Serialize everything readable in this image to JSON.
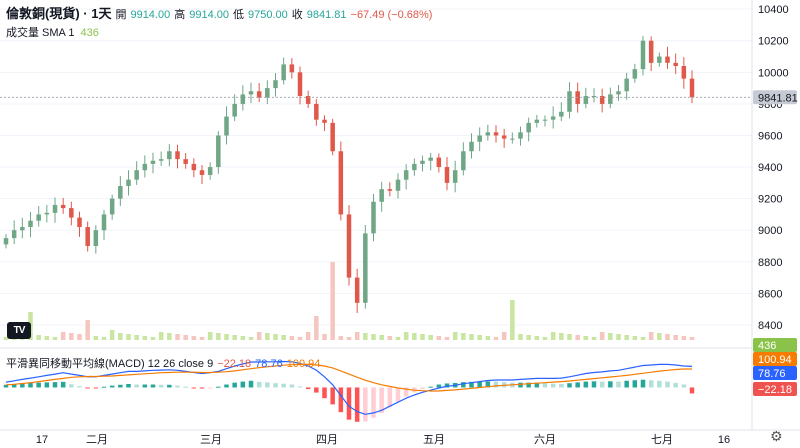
{
  "header": {
    "title": "倫敦銅(現貨) · 1天",
    "open_label": "開",
    "open": "9914.00",
    "high_label": "高",
    "high": "9914.00",
    "low_label": "低",
    "low": "9750.00",
    "close_label": "收",
    "close": "9841.81",
    "change": "−67.49 (−0.68%)"
  },
  "volume": {
    "label": "成交量 SMA 1",
    "value": "436"
  },
  "macd": {
    "label": "平滑異同移動平均線(MACD) 12 26 close 9",
    "hist": "−22.18",
    "macd": "78.76",
    "signal": "100.94"
  },
  "colors": {
    "up": "#26a69a",
    "up_candle": "#6fa686",
    "down": "#e0584a",
    "macd_line": "#2962ff",
    "signal_line": "#f57c00",
    "vol_bar": "#c8e6a0"
  },
  "logo": "TV",
  "settings_icon": "gear-icon",
  "chart_data": {
    "type": "candlestick",
    "y_axis_ticks": [
      8400,
      8600,
      8800,
      9000,
      9200,
      9400,
      9600,
      9800,
      10000,
      10200,
      10400
    ],
    "ylim": [
      8330,
      10420
    ],
    "x_axis_labels": [
      "17",
      "二月",
      "三月",
      "四月",
      "五月",
      "六月",
      "七月",
      "16"
    ],
    "last_price": "9841.81",
    "price_series": [
      8950,
      9000,
      9020,
      9060,
      9100,
      9110,
      9160,
      9140,
      9080,
      9020,
      8900,
      9000,
      9100,
      9200,
      9280,
      9320,
      9380,
      9420,
      9440,
      9450,
      9500,
      9450,
      9420,
      9380,
      9350,
      9400,
      9600,
      9720,
      9800,
      9860,
      9880,
      9840,
      9900,
      9950,
      10050,
      10000,
      9850,
      9800,
      9700,
      9680,
      9500,
      9100,
      8700,
      8540,
      8980,
      9180,
      9260,
      9250,
      9320,
      9380,
      9420,
      9440,
      9460,
      9400,
      9300,
      9380,
      9500,
      9560,
      9600,
      9620,
      9600,
      9580,
      9580,
      9620,
      9680,
      9700,
      9700,
      9720,
      9750,
      9880,
      9800,
      9850,
      9850,
      9800,
      9860,
      9880,
      9960,
      10020,
      10200,
      10060,
      10100,
      10060,
      10040,
      9960,
      9841.81
    ],
    "macd_series": {
      "macd": [
        20,
        25,
        30,
        35,
        40,
        45,
        50,
        55,
        50,
        45,
        40,
        40,
        45,
        50,
        55,
        60,
        60,
        62,
        64,
        65,
        66,
        64,
        60,
        56,
        52,
        55,
        60,
        70,
        80,
        88,
        95,
        95,
        96,
        96,
        97,
        96,
        90,
        80,
        65,
        40,
        10,
        -30,
        -70,
        -90,
        -100,
        -95,
        -85,
        -70,
        -55,
        -40,
        -28,
        -18,
        -10,
        -2,
        4,
        8,
        14,
        18,
        22,
        26,
        28,
        28,
        28,
        30,
        32,
        34,
        34,
        34,
        35,
        40,
        46,
        52,
        56,
        58,
        62,
        64,
        70,
        76,
        82,
        84,
        86,
        86,
        84,
        80,
        78.76
      ],
      "signal": [
        10,
        12,
        15,
        18,
        22,
        26,
        30,
        34,
        38,
        40,
        41,
        41,
        42,
        43,
        45,
        47,
        49,
        51,
        53,
        55,
        56,
        57,
        57,
        57,
        56,
        56,
        57,
        59,
        62,
        66,
        70,
        74,
        77,
        80,
        83,
        85,
        86,
        86,
        84,
        80,
        73,
        62,
        50,
        38,
        27,
        18,
        10,
        4,
        -2,
        -6,
        -10,
        -12,
        -13,
        -13,
        -11,
        -9,
        -6,
        -3,
        0,
        3,
        6,
        8,
        10,
        12,
        14,
        16,
        18,
        20,
        22,
        24,
        27,
        30,
        33,
        36,
        39,
        42,
        45,
        49,
        53,
        57,
        61,
        64,
        67,
        69,
        100.94
      ],
      "hist": [
        10,
        13,
        15,
        17,
        18,
        19,
        20,
        21,
        12,
        5,
        -1,
        -1,
        3,
        7,
        10,
        13,
        11,
        11,
        11,
        10,
        10,
        7,
        3,
        -1,
        -4,
        -1,
        3,
        11,
        18,
        22,
        25,
        21,
        19,
        16,
        14,
        11,
        4,
        -6,
        -19,
        -40,
        -63,
        -92,
        -120,
        -128,
        -127,
        -113,
        -95,
        -74,
        -53,
        -34,
        -18,
        -6,
        3,
        11,
        15,
        17,
        20,
        21,
        22,
        23,
        22,
        20,
        18,
        18,
        18,
        18,
        16,
        14,
        13,
        16,
        19,
        22,
        23,
        22,
        23,
        22,
        25,
        27,
        29,
        27,
        25,
        22,
        17,
        11,
        -22.18
      ]
    }
  }
}
